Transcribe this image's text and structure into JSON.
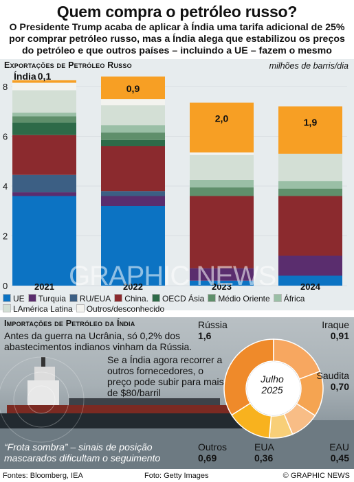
{
  "header": {
    "title": "Quem compra o petróleo russo?",
    "intro": "O Presidente Trump acaba de aplicar à Índia uma tarifa adicional de 25% por comprar petróleo russo, mas a Índia alega que estabilizou os preços do petróleo e que outros países – incluindo a UE – fazem o mesmo"
  },
  "exports_section": {
    "title": "Exportações de Petróleo Russo",
    "unit": "milhões de barris/dia",
    "india_label": "Índia"
  },
  "colors": {
    "UE": "#0c73c3",
    "Turquia": "#5a2d6e",
    "RU/EUA": "#3c5f84",
    "China.": "#8b2a2e",
    "OECD Ásia": "#2d6a48",
    "Médio Oriente": "#5f8f6b",
    "África": "#9abfa6",
    "LAmérica Latina": "#d3dfd5",
    "Outros/desconhecido": "#f3f3ef",
    "Índia": "#f79f24"
  },
  "chart_data": {
    "type": "bar",
    "stacked": true,
    "categories": [
      "2021",
      "2022",
      "2023",
      "2024"
    ],
    "ylim": [
      0,
      8
    ],
    "yticks": [
      0,
      2,
      4,
      6,
      8
    ],
    "series": [
      {
        "name": "UE",
        "values": [
          3.6,
          3.2,
          0.2,
          0.4
        ]
      },
      {
        "name": "Turquia",
        "values": [
          0.15,
          0.4,
          0.5,
          0.8
        ]
      },
      {
        "name": "RU/EUA",
        "values": [
          0.7,
          0.2,
          0.0,
          0.0
        ]
      },
      {
        "name": "China.",
        "values": [
          1.6,
          1.8,
          2.9,
          2.4
        ]
      },
      {
        "name": "OECD Ásia",
        "values": [
          0.5,
          0.25,
          0.0,
          0.0
        ]
      },
      {
        "name": "Médio Oriente",
        "values": [
          0.25,
          0.3,
          0.35,
          0.3
        ]
      },
      {
        "name": "África",
        "values": [
          0.15,
          0.3,
          0.3,
          0.3
        ]
      },
      {
        "name": "LAmérica Latina",
        "values": [
          0.9,
          0.8,
          1.0,
          1.1
        ]
      },
      {
        "name": "Outros/desconhecido",
        "values": [
          0.3,
          0.25,
          0.1,
          0.0
        ]
      },
      {
        "name": "Índia",
        "values": [
          0.1,
          0.9,
          2.0,
          1.9
        ]
      }
    ],
    "data_labels": [
      "0,1",
      "0,9",
      "2,0",
      "1,9"
    ]
  },
  "imports_section": {
    "title": "Importações de Petróleo da Índia",
    "text1": "Antes da guerra na Ucrânia, só 0,2% dos abastecimentos indianos vinham da Rússia.",
    "text2": "Se a Índia agora recorrer a outros fornecedores, o preço pode subir para mais de $80/barril",
    "caption": "“Frota sombra” – sinais de posição mascarados dificultam o seguimento",
    "center_month": "Julho",
    "center_year": "2025"
  },
  "donut": {
    "type": "pie",
    "slices": [
      {
        "label": "Rússia",
        "value": 1.6,
        "value_text": "1,6",
        "color": "#ef8a2a"
      },
      {
        "label": "Iraque",
        "value": 0.91,
        "value_text": "0,91",
        "color": "#f7a760"
      },
      {
        "label": "Saudita",
        "value": 0.7,
        "value_text": "0,70",
        "color": "#f5a451"
      },
      {
        "label": "EAU",
        "value": 0.45,
        "value_text": "0,45",
        "color": "#f8bd86"
      },
      {
        "label": "EUA",
        "value": 0.36,
        "value_text": "0,36",
        "color": "#f8cf78"
      },
      {
        "label": "Outros",
        "value": 0.69,
        "value_text": "0,69",
        "color": "#f8b21e"
      }
    ]
  },
  "footer": {
    "sources": "Fontes: Bloomberg, IEA",
    "photo": "Foto: Getty Images",
    "credit": "© GRAPHIC NEWS"
  },
  "watermark": "GRAPHIC NEWS"
}
